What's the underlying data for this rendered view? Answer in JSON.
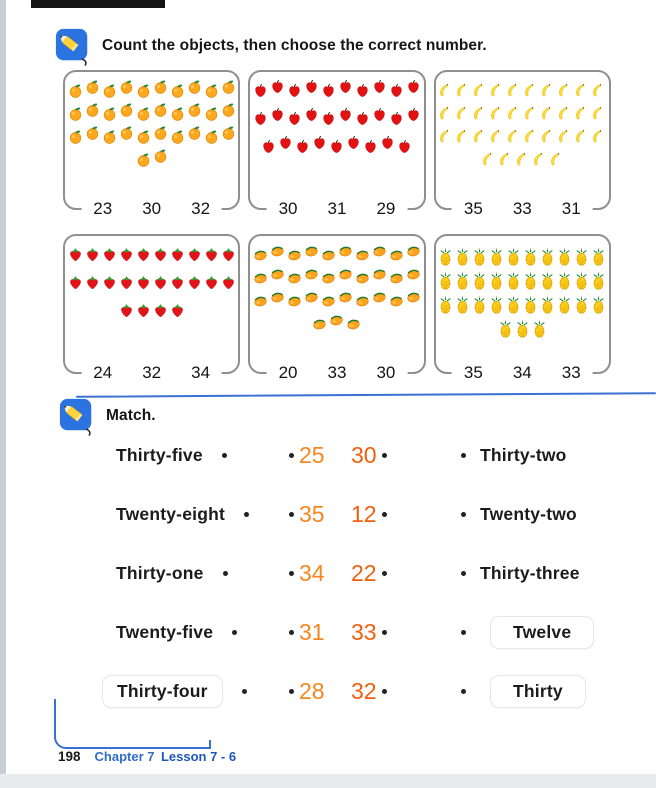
{
  "page": {
    "instruction": "Count the objects, then choose the correct number.",
    "match_label": "Match.",
    "footer": {
      "page_number": "198",
      "chapter": "Chapter 7",
      "lesson": "Lesson 7 - 6"
    }
  },
  "icons": {
    "section_icon": "pencil-icon"
  },
  "colors": {
    "accent_blue": "#3a6fd3",
    "icon_blue": "#2C73E2",
    "orange_number_left": "#F6861D",
    "orange_number_right": "#EF5F0D",
    "box_border": "#8f8f8f"
  },
  "count_section": {
    "boxes": [
      {
        "fruit": "orange",
        "rows": [
          10,
          10,
          10,
          2
        ],
        "zigzag": true,
        "options": [
          "23",
          "30",
          "32"
        ]
      },
      {
        "fruit": "apple",
        "rows": [
          10,
          10,
          9
        ],
        "zigzag": true,
        "options": [
          "30",
          "31",
          "29"
        ]
      },
      {
        "fruit": "banana",
        "rows": [
          10,
          10,
          10,
          5
        ],
        "zigzag": false,
        "options": [
          "35",
          "33",
          "31"
        ]
      },
      {
        "fruit": "strawberry",
        "rows": [
          10,
          10,
          4
        ],
        "zigzag": false,
        "options": [
          "24",
          "32",
          "34"
        ]
      },
      {
        "fruit": "mango",
        "rows": [
          10,
          10,
          10,
          3
        ],
        "zigzag": true,
        "options": [
          "20",
          "33",
          "30"
        ]
      },
      {
        "fruit": "pineapple",
        "rows": [
          10,
          10,
          10,
          3
        ],
        "zigzag": false,
        "options": [
          "35",
          "34",
          "33"
        ]
      }
    ]
  },
  "match_section": {
    "rows": [
      {
        "left_word": "Thirty-five",
        "num_left": "25",
        "num_right": "30",
        "right_word": "Thirty-two"
      },
      {
        "left_word": "Twenty-eight",
        "num_left": "35",
        "num_right": "12",
        "right_word": "Twenty-two"
      },
      {
        "left_word": "Thirty-one",
        "num_left": "34",
        "num_right": "22",
        "right_word": "Thirty-three"
      },
      {
        "left_word": "Twenty-five",
        "num_left": "31",
        "num_right": "33",
        "right_word": "Twelve"
      },
      {
        "left_word": "Thirty-four",
        "num_left": "28",
        "num_right": "32",
        "right_word": "Thirty"
      }
    ]
  }
}
